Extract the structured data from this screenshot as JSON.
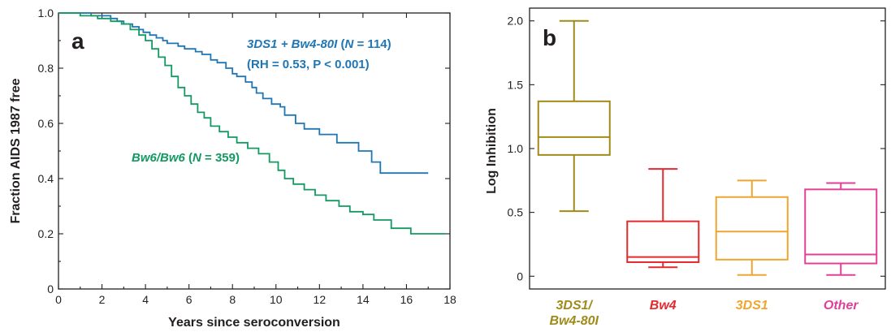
{
  "chart_data": [
    {
      "type": "line",
      "panel_label": "a",
      "xlabel": "Years since seroconversion",
      "ylabel": "Fraction AIDS 1987 free",
      "xlim": [
        0,
        18
      ],
      "ylim": [
        0,
        1.0
      ],
      "xticks": [
        "0",
        "2",
        "4",
        "6",
        "8",
        "10",
        "12",
        "14",
        "16",
        "18"
      ],
      "yticks": [
        "0",
        "0.2",
        "0.4",
        "0.6",
        "0.8",
        "1.0"
      ],
      "grid": false,
      "series": [
        {
          "key": "blue",
          "color": "#1f76b4",
          "label_lines": [
            [
              {
                "text": "3DS1 + Bw4-80I",
                "style": "italic"
              },
              {
                "text": " (",
                "style": "normal"
              },
              {
                "text": "N",
                "style": "italic"
              },
              {
                "text": " = 114)",
                "style": "normal"
              }
            ],
            [
              {
                "text": "(RH = 0.53, P < 0.001)",
                "style": "normal"
              }
            ]
          ],
          "x": [
            0,
            1.5,
            2.4,
            2.7,
            3.0,
            3.4,
            3.7,
            3.9,
            4.2,
            4.5,
            4.8,
            5.0,
            5.5,
            5.8,
            6.3,
            6.6,
            7.0,
            7.3,
            7.7,
            8.0,
            8.2,
            8.6,
            8.9,
            9.1,
            9.4,
            9.8,
            10.2,
            10.4,
            10.9,
            11.3,
            12.0,
            12.8,
            13.8,
            14.4,
            14.8,
            17.0
          ],
          "y": [
            1.0,
            0.99,
            0.98,
            0.97,
            0.96,
            0.95,
            0.94,
            0.93,
            0.92,
            0.91,
            0.9,
            0.89,
            0.88,
            0.87,
            0.86,
            0.85,
            0.83,
            0.82,
            0.8,
            0.78,
            0.77,
            0.75,
            0.73,
            0.71,
            0.69,
            0.67,
            0.66,
            0.63,
            0.6,
            0.58,
            0.56,
            0.53,
            0.5,
            0.46,
            0.42,
            0.42
          ]
        },
        {
          "key": "green",
          "color": "#139a62",
          "label_lines": [
            [
              {
                "text": "Bw6/Bw6",
                "style": "italic"
              },
              {
                "text": " (",
                "style": "normal"
              },
              {
                "text": "N",
                "style": "italic"
              },
              {
                "text": " = 359)",
                "style": "normal"
              }
            ]
          ],
          "x": [
            0,
            1.0,
            1.8,
            2.4,
            2.9,
            3.3,
            3.7,
            4.0,
            4.3,
            4.6,
            4.9,
            5.2,
            5.5,
            5.8,
            6.1,
            6.4,
            6.7,
            7.0,
            7.4,
            7.8,
            8.2,
            8.7,
            9.2,
            9.7,
            10.1,
            10.4,
            10.8,
            11.3,
            11.8,
            12.3,
            12.9,
            13.4,
            14.0,
            14.5,
            15.3,
            16.2,
            17.8
          ],
          "y": [
            1.0,
            0.99,
            0.98,
            0.97,
            0.96,
            0.94,
            0.92,
            0.9,
            0.87,
            0.84,
            0.81,
            0.77,
            0.73,
            0.7,
            0.67,
            0.64,
            0.62,
            0.59,
            0.57,
            0.55,
            0.53,
            0.51,
            0.49,
            0.46,
            0.43,
            0.4,
            0.38,
            0.36,
            0.34,
            0.32,
            0.3,
            0.28,
            0.27,
            0.25,
            0.22,
            0.2,
            0.2
          ]
        }
      ]
    },
    {
      "type": "box",
      "panel_label": "b",
      "ylabel": "Log Inhibition",
      "ylim": [
        -0.1,
        2.1
      ],
      "yticks": [
        "0",
        "0.5",
        "1.0",
        "1.5",
        "2.0"
      ],
      "grid": false,
      "categories": [
        {
          "label_lines": [
            "3DS1/",
            "Bw4-80I"
          ],
          "color": "#a08b1a",
          "min": 0.51,
          "q1": 0.95,
          "median": 1.09,
          "q3": 1.37,
          "max": 2.0
        },
        {
          "label_lines": [
            "Bw4"
          ],
          "color": "#e32a2f",
          "min": 0.07,
          "q1": 0.11,
          "median": 0.15,
          "q3": 0.43,
          "max": 0.84
        },
        {
          "label_lines": [
            "3DS1"
          ],
          "color": "#f0a52e",
          "min": 0.01,
          "q1": 0.13,
          "median": 0.35,
          "q3": 0.62,
          "max": 0.75
        },
        {
          "label_lines": [
            "Other"
          ],
          "color": "#e0409a",
          "min": 0.01,
          "q1": 0.1,
          "median": 0.17,
          "q3": 0.68,
          "max": 0.73
        }
      ]
    }
  ]
}
